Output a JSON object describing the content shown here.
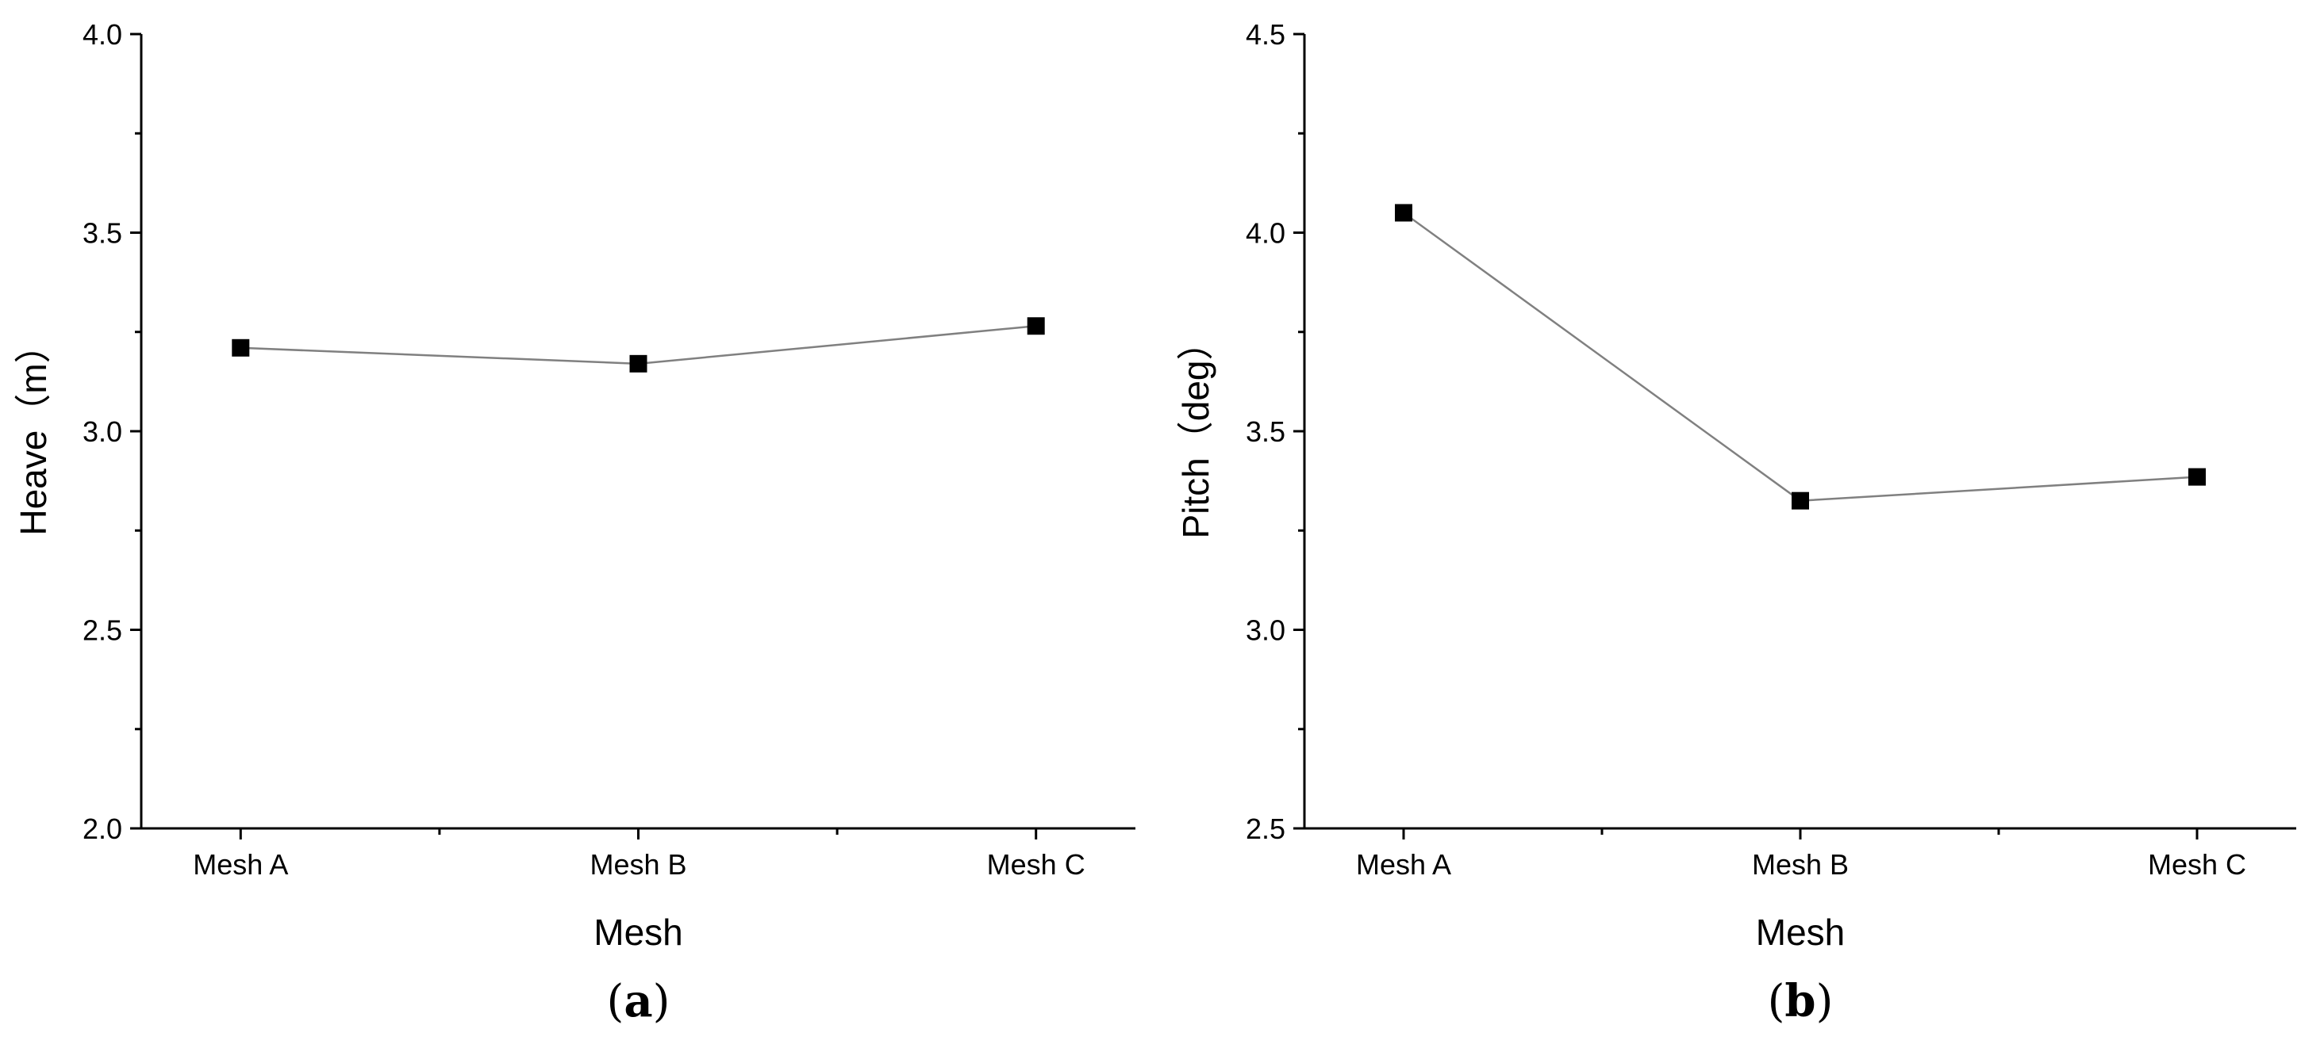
{
  "chart_data": [
    {
      "type": "line",
      "panel_label": "a",
      "categories": [
        "Mesh A",
        "Mesh B",
        "Mesh C"
      ],
      "series": [
        {
          "values": [
            3.21,
            3.17,
            3.265
          ]
        }
      ],
      "xlabel": "Mesh",
      "ylabel": "Heave（m）",
      "ylim": [
        2.0,
        4.0
      ],
      "yticks": [
        "2.0",
        "2.5",
        "3.0",
        "3.5",
        "4.0"
      ],
      "ytick_values": [
        2.0,
        2.5,
        3.0,
        3.5,
        4.0
      ],
      "grid": false,
      "marker": "square",
      "line_color": "#808080",
      "marker_color": "#000000"
    },
    {
      "type": "line",
      "panel_label": "b",
      "categories": [
        "Mesh A",
        "Mesh B",
        "Mesh C"
      ],
      "series": [
        {
          "values": [
            4.05,
            3.325,
            3.385
          ]
        }
      ],
      "xlabel": "Mesh",
      "ylabel": "Pitch（deg）",
      "ylim": [
        2.5,
        4.5
      ],
      "yticks": [
        "2.5",
        "3.0",
        "3.5",
        "4.0",
        "4.5"
      ],
      "ytick_values": [
        2.5,
        3.0,
        3.5,
        4.0,
        4.5
      ],
      "grid": false,
      "marker": "square",
      "line_color": "#808080",
      "marker_color": "#000000"
    }
  ]
}
